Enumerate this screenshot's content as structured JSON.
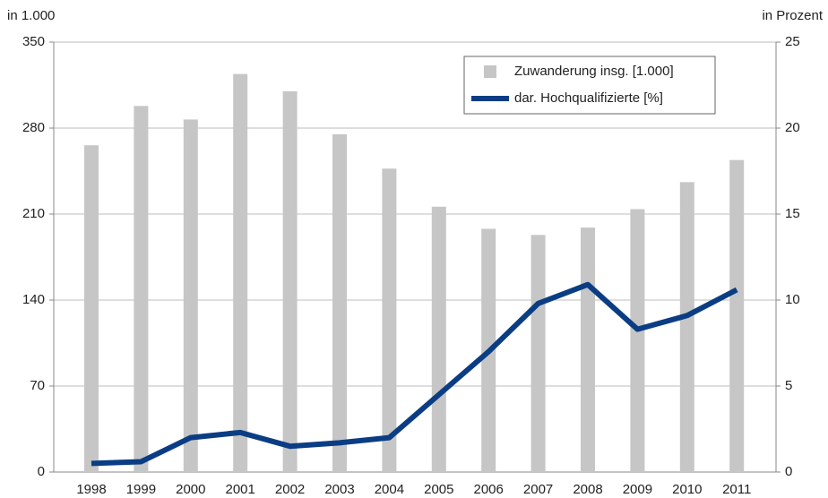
{
  "chart_data": {
    "type": "bar_line",
    "y_label": "in 1.000",
    "y2_label": "in Prozent",
    "categories": [
      "1998",
      "1999",
      "2000",
      "2001",
      "2002",
      "2003",
      "2004",
      "2005",
      "2006",
      "2007",
      "2008",
      "2009",
      "2010",
      "2011"
    ],
    "series": [
      {
        "name": "Zuwanderung insg. [1.000]",
        "color": "#c6c6c6",
        "type": "bar",
        "axis": "y",
        "values": [
          266,
          298,
          287,
          324,
          310,
          275,
          247,
          216,
          198,
          193,
          199,
          214,
          236,
          254
        ]
      },
      {
        "name": "dar. Hochqualifizierte [%]",
        "color": "#0b3d84",
        "type": "line",
        "axis": "y2",
        "values": [
          0.5,
          0.6,
          2.0,
          2.3,
          1.5,
          1.7,
          2.0,
          4.5,
          7.0,
          9.8,
          10.9,
          8.3,
          9.1,
          10.6
        ]
      }
    ],
    "ylim": [
      0,
      350
    ],
    "yticks": [
      0,
      70,
      140,
      210,
      280,
      350
    ],
    "y2lim": [
      0,
      25
    ],
    "y2ticks": [
      0,
      5,
      10,
      15,
      20,
      25
    ],
    "grid": true,
    "legend": "top-right"
  }
}
